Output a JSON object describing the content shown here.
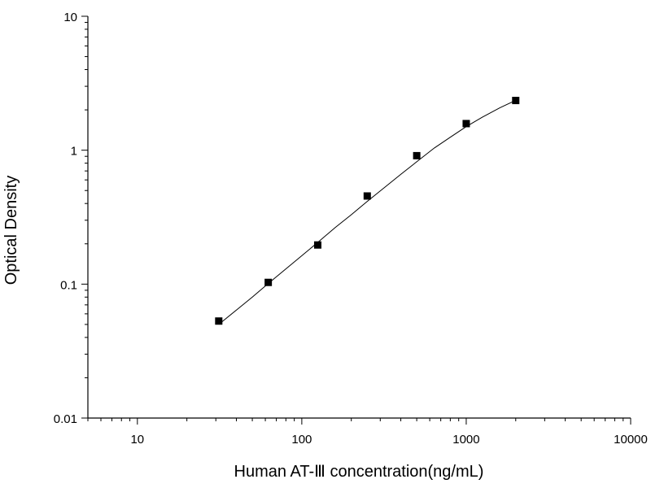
{
  "chart_data": {
    "type": "scatter",
    "xlabel": "Human AT-Ⅲ concentration(ng/mL)",
    "ylabel": "Optical Density",
    "x_scale": "log",
    "y_scale": "log",
    "xlim": [
      5,
      10000
    ],
    "ylim": [
      0.01,
      10
    ],
    "x_ticks": [
      10,
      100,
      1000,
      10000
    ],
    "x_tick_labels": [
      "10",
      "100",
      "1000",
      "10000"
    ],
    "y_ticks": [
      0.01,
      0.1,
      1,
      10
    ],
    "y_tick_labels": [
      "0.01",
      "0.1",
      "1",
      "10"
    ],
    "grid": false,
    "legend": "none",
    "series": [
      {
        "marker": "square",
        "color": "#000000",
        "x": [
          31.25,
          62.5,
          125,
          250,
          500,
          1000,
          2000
        ],
        "y": [
          0.053,
          0.103,
          0.196,
          0.455,
          0.91,
          1.58,
          2.35
        ]
      }
    ],
    "fit_curve": {
      "color": "#000000",
      "x": [
        31.25,
        40,
        50,
        62.5,
        80,
        100,
        125,
        160,
        200,
        250,
        320,
        400,
        500,
        640,
        800,
        1000,
        1250,
        1600,
        2000
      ],
      "y": [
        0.05,
        0.064,
        0.08,
        0.101,
        0.13,
        0.163,
        0.205,
        0.265,
        0.33,
        0.415,
        0.53,
        0.66,
        0.82,
        1.04,
        1.25,
        1.5,
        1.76,
        2.07,
        2.36
      ]
    }
  }
}
